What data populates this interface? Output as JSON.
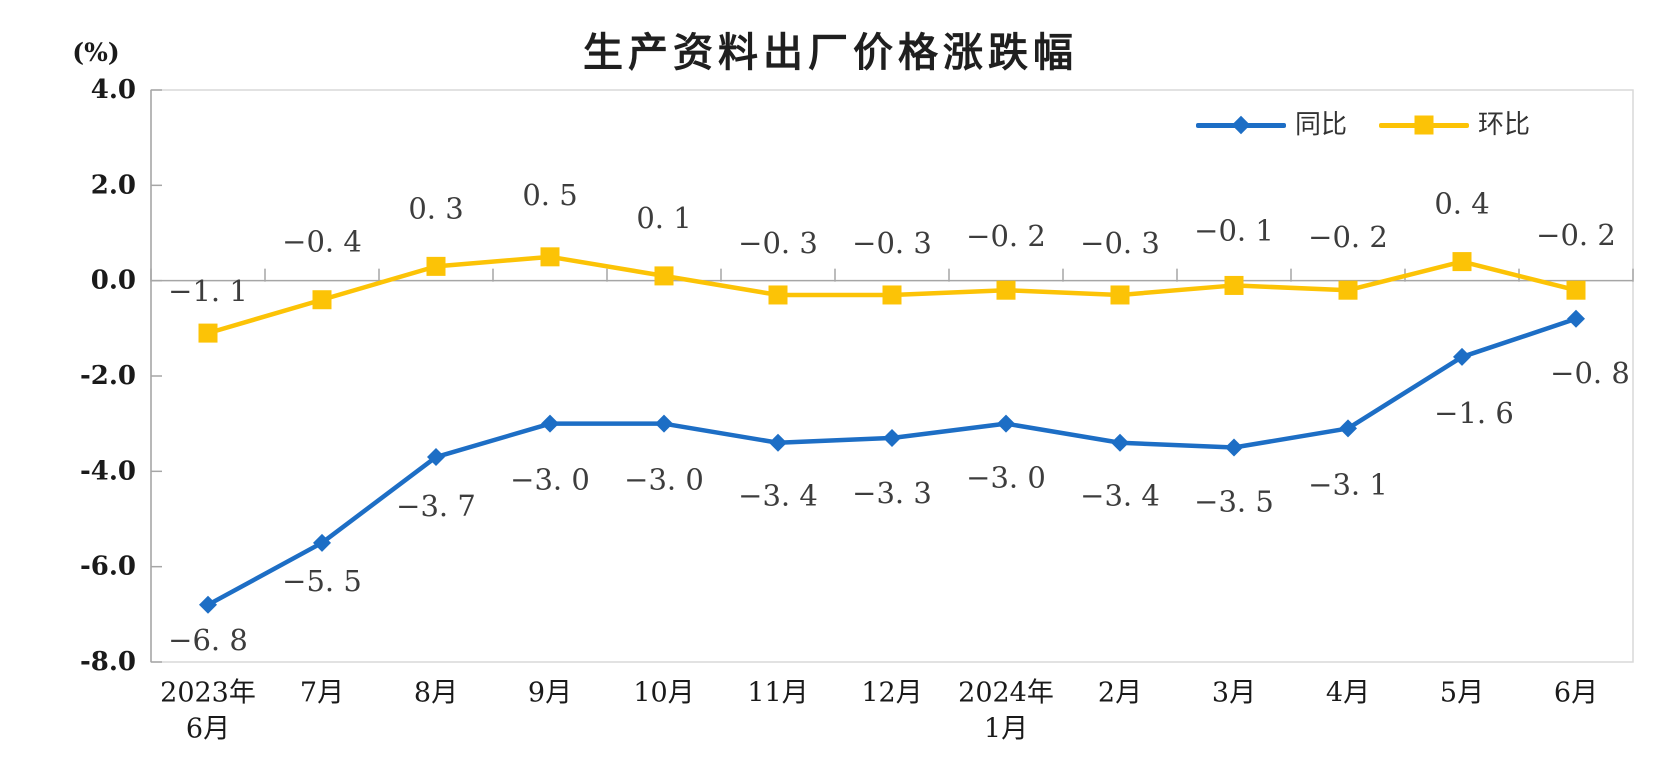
{
  "title": "生产资料出厂价格涨跌幅",
  "unit_label": "(%)",
  "colors": {
    "tongbi_blue": "#1d6ec5",
    "huanbi_yellow": "#fcc306",
    "plot_border": "#d9d9d9",
    "axis_line": "#a6a6a6",
    "axis_text": "#1a1a1a",
    "data_label_text": "#3d3d3d",
    "title_text": "#1f1f1f",
    "background": "#ffffff"
  },
  "chart_data": {
    "type": "line",
    "title": "生产资料出厂价格涨跌幅",
    "ylabel": "(%)",
    "xlabel": "",
    "ylim": [
      -8.0,
      4.0
    ],
    "grid": false,
    "legend_position": "top-right-inside",
    "y_tick_labels": [
      "4.0",
      "2.0",
      "0.0",
      "-2.0",
      "-4.0",
      "-6.0",
      "-8.0"
    ],
    "y_tick_values": [
      4.0,
      2.0,
      0.0,
      -2.0,
      -4.0,
      -6.0,
      -8.0
    ],
    "categories": [
      "2023年\n6月",
      "7月",
      "8月",
      "9月",
      "10月",
      "11月",
      "12月",
      "2024年\n1月",
      "2月",
      "3月",
      "4月",
      "5月",
      "6月"
    ],
    "series": [
      {
        "name": "同比",
        "color": "#1d6ec5",
        "marker": "diamond",
        "values": [
          -6.8,
          -5.5,
          -3.7,
          -3.0,
          -3.0,
          -3.4,
          -3.3,
          -3.0,
          -3.4,
          -3.5,
          -3.1,
          -1.6,
          -0.8
        ],
        "labels": [
          "−6. 8",
          "−5. 5",
          "−3. 7",
          "−3. 0",
          "−3. 0",
          "−3. 4",
          "−3. 3",
          "−3. 0",
          "−3. 4",
          "−3. 5",
          "−3. 1",
          "−1. 6",
          "−0. 8"
        ],
        "label_dy": [
          35,
          38,
          49,
          56,
          56,
          53,
          55,
          54,
          53,
          54,
          56,
          56,
          54
        ],
        "label_dx": [
          0,
          0,
          0,
          0,
          0,
          0,
          0,
          0,
          0,
          0,
          0,
          12,
          14
        ]
      },
      {
        "name": "环比",
        "color": "#fcc306",
        "marker": "square",
        "values": [
          -1.1,
          -0.4,
          0.3,
          0.5,
          0.1,
          -0.3,
          -0.3,
          -0.2,
          -0.3,
          -0.1,
          -0.2,
          0.4,
          -0.2
        ],
        "labels": [
          "−1. 1",
          "−0. 4",
          "0. 3",
          "0. 5",
          "0. 1",
          "−0. 3",
          "−0. 3",
          "−0. 2",
          "−0. 3",
          "−0. 1",
          "−0. 2",
          "0. 4",
          "−0. 2"
        ],
        "label_dy": [
          -42,
          -58,
          -58,
          -62,
          -58,
          -52,
          -52,
          -54,
          -52,
          -55,
          -53,
          -58,
          -55
        ],
        "label_dx": [
          0,
          0,
          0,
          0,
          0,
          0,
          0,
          0,
          0,
          0,
          0,
          0,
          0
        ]
      }
    ]
  }
}
